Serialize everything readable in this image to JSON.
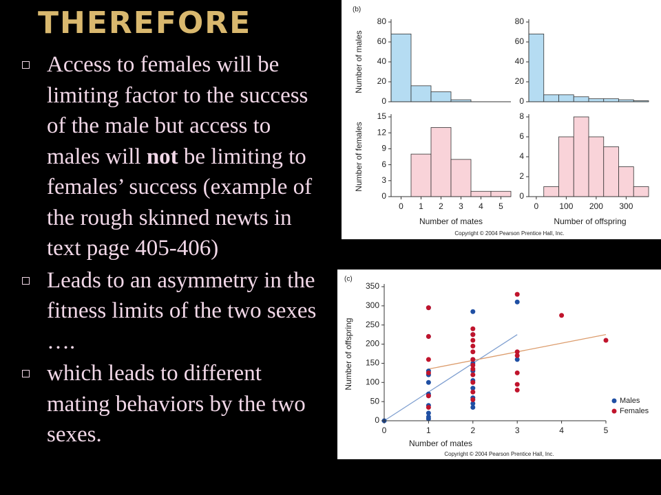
{
  "title": "THEREFORE",
  "bullets": [
    {
      "parts": [
        "Access to females will be limiting factor to the success of the male but access to males will ",
        "not",
        " be limiting to females’ success (example of the rough skinned  newts in text page 405-406)"
      ]
    },
    {
      "parts": [
        "Leads to an asymmetry in the fitness limits of the two sexes …."
      ]
    },
    {
      "parts": [
        "which leads to different mating behaviors by the two sexes."
      ]
    }
  ],
  "panels": [
    {
      "label": "(b)",
      "copyright": "Copyright © 2004 Pearson Prentice Hall, Inc."
    },
    {
      "label": "(c)",
      "copyright": "Copyright © 2004 Pearson Prentice Hall, Inc."
    }
  ],
  "chart_data": [
    {
      "type": "histogram",
      "ylabel": "Number of males",
      "color": "#b5dcf2",
      "bins": [
        -0.5,
        0.5,
        1.5,
        2.5,
        3.5,
        4.5,
        5.5
      ],
      "values": [
        68,
        16,
        10,
        2,
        0,
        0
      ],
      "xlim": [
        -0.5,
        5.5
      ],
      "ylim": [
        0,
        80
      ],
      "yticks": [
        0,
        20,
        40,
        60,
        80
      ]
    },
    {
      "type": "histogram",
      "color": "#b5dcf2",
      "bins": [
        -25,
        25,
        75,
        125,
        175,
        225,
        275,
        325,
        375
      ],
      "values": [
        68,
        7,
        7,
        5,
        3,
        3,
        2,
        1
      ],
      "xlim": [
        -25,
        375
      ],
      "ylim": [
        0,
        80
      ],
      "yticks": [
        0,
        20,
        40,
        60,
        80
      ]
    },
    {
      "type": "histogram",
      "ylabel": "Number of females",
      "xlabel": "Number of mates",
      "color": "#f9d3d9",
      "bins": [
        -0.5,
        0.5,
        1.5,
        2.5,
        3.5,
        4.5,
        5.5
      ],
      "values": [
        0,
        8,
        13,
        7,
        1,
        1
      ],
      "xlim": [
        -0.5,
        5.5
      ],
      "xticks": [
        0,
        1,
        2,
        3,
        4,
        5
      ],
      "ylim": [
        0,
        15
      ],
      "yticks": [
        0,
        3,
        6,
        9,
        12,
        15
      ]
    },
    {
      "type": "histogram",
      "xlabel": "Number of offspring",
      "color": "#f9d3d9",
      "bins": [
        -25,
        25,
        75,
        125,
        175,
        225,
        275,
        325,
        375
      ],
      "values": [
        0,
        1,
        6,
        8,
        6,
        5,
        3,
        1
      ],
      "xlim": [
        -25,
        375
      ],
      "xticks": [
        0,
        100,
        200,
        300
      ],
      "ylim": [
        0,
        8
      ],
      "yticks": [
        0,
        2,
        4,
        6,
        8
      ]
    },
    {
      "type": "scatter",
      "xlabel": "Number of mates",
      "ylabel": "Number of offspring",
      "xlim": [
        0,
        5
      ],
      "xticks": [
        0,
        1,
        2,
        3,
        4,
        5
      ],
      "ylim": [
        0,
        350
      ],
      "yticks": [
        0,
        50,
        100,
        150,
        200,
        250,
        300,
        350
      ],
      "legend": "lower right",
      "series": [
        {
          "name": "Males",
          "color": "#1f4fa3",
          "x": [
            0,
            1,
            1,
            1,
            1,
            1,
            1,
            1,
            1,
            1,
            1,
            1,
            2,
            2,
            2,
            2,
            2,
            2,
            2,
            2,
            2,
            2,
            3,
            3
          ],
          "values": [
            0,
            295,
            220,
            130,
            120,
            100,
            70,
            65,
            40,
            20,
            10,
            5,
            285,
            225,
            160,
            150,
            130,
            105,
            85,
            60,
            45,
            35,
            310,
            160
          ]
        },
        {
          "name": "Females",
          "color": "#c0142c",
          "x": [
            1,
            1,
            1,
            1,
            1,
            1,
            2,
            2,
            2,
            2,
            2,
            2,
            2,
            2,
            2,
            2,
            2,
            2,
            3,
            3,
            3,
            3,
            3,
            3,
            4,
            5
          ],
          "values": [
            295,
            220,
            160,
            125,
            65,
            35,
            240,
            225,
            210,
            195,
            180,
            160,
            145,
            135,
            120,
            100,
            75,
            55,
            330,
            180,
            170,
            125,
            95,
            80,
            275,
            210
          ]
        }
      ],
      "lines": [
        {
          "color": "#7f9fd0",
          "x": [
            0,
            3
          ],
          "values": [
            0,
            225
          ]
        },
        {
          "color": "#dc9c6c",
          "x": [
            1,
            5
          ],
          "values": [
            135,
            225
          ]
        }
      ]
    }
  ]
}
